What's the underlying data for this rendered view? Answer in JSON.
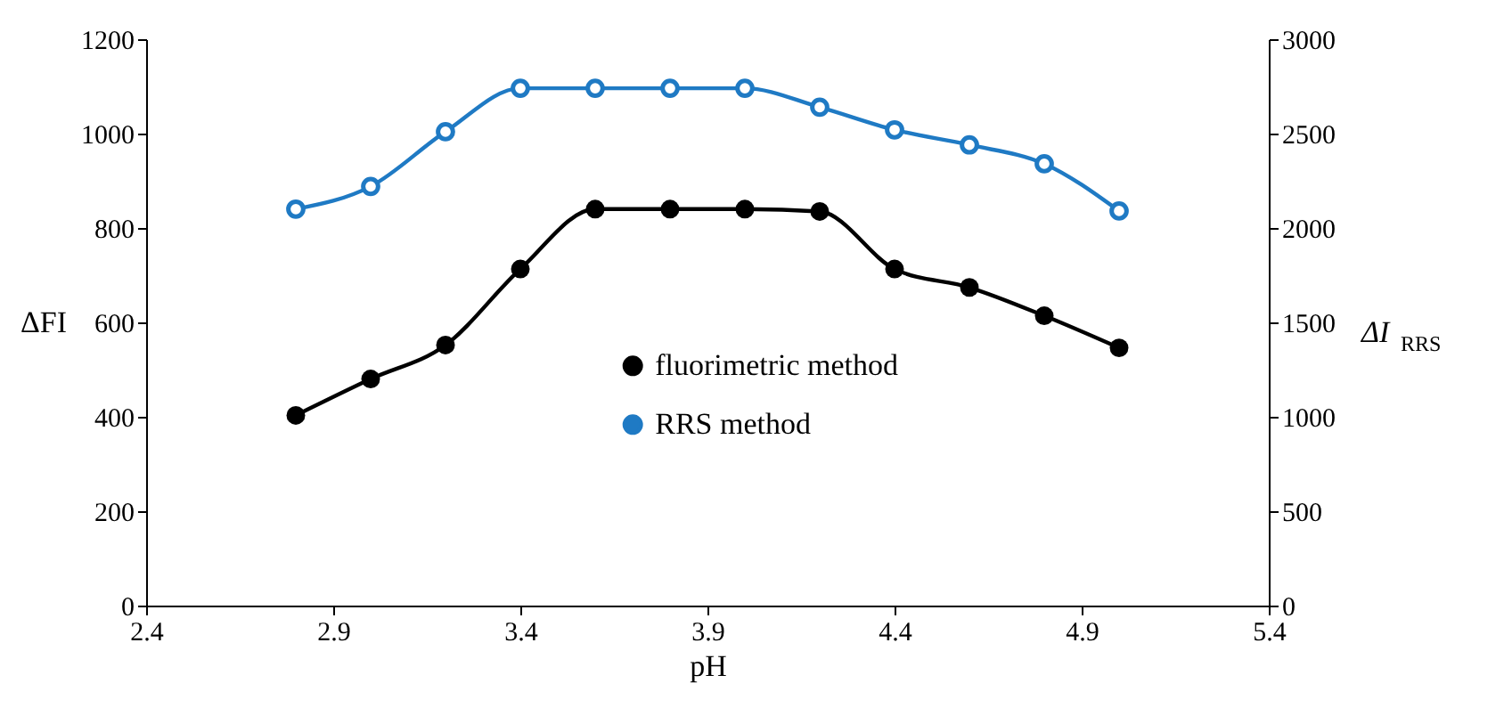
{
  "chart_data": {
    "type": "line",
    "xlabel": "pH",
    "ylabel": "ΔFI",
    "y2label": "ΔI$_{RRS}$",
    "x": [
      2.8,
      3.0,
      3.2,
      3.4,
      3.6,
      3.8,
      4.0,
      4.2,
      4.4,
      4.6,
      4.8,
      5.0
    ],
    "series": [
      {
        "name": "fluorimetric method",
        "color": "#000000",
        "values": [
          403,
          480,
          552,
          713,
          840,
          840,
          840,
          835,
          713,
          674,
          614,
          546
        ]
      },
      {
        "name": "RRS method",
        "color": "#1f7ac4",
        "axis": "y2",
        "values": [
          2100,
          2220,
          2510,
          2740,
          2740,
          2740,
          2740,
          2640,
          2520,
          2440,
          2340,
          2090
        ]
      }
    ],
    "xlim": [
      2.4,
      5.4
    ],
    "xticks": [
      2.4,
      2.9,
      3.4,
      3.9,
      4.4,
      4.9,
      5.4
    ],
    "ylim": [
      0,
      1200
    ],
    "yticks": [
      0,
      200,
      400,
      600,
      800,
      1000,
      1200
    ],
    "y2lim": [
      0,
      3000
    ],
    "y2ticks": [
      0,
      500,
      1000,
      1500,
      2000,
      2500,
      3000
    ],
    "marker": "circle",
    "line_style": "solid",
    "grid": false,
    "legend": "bottom"
  }
}
